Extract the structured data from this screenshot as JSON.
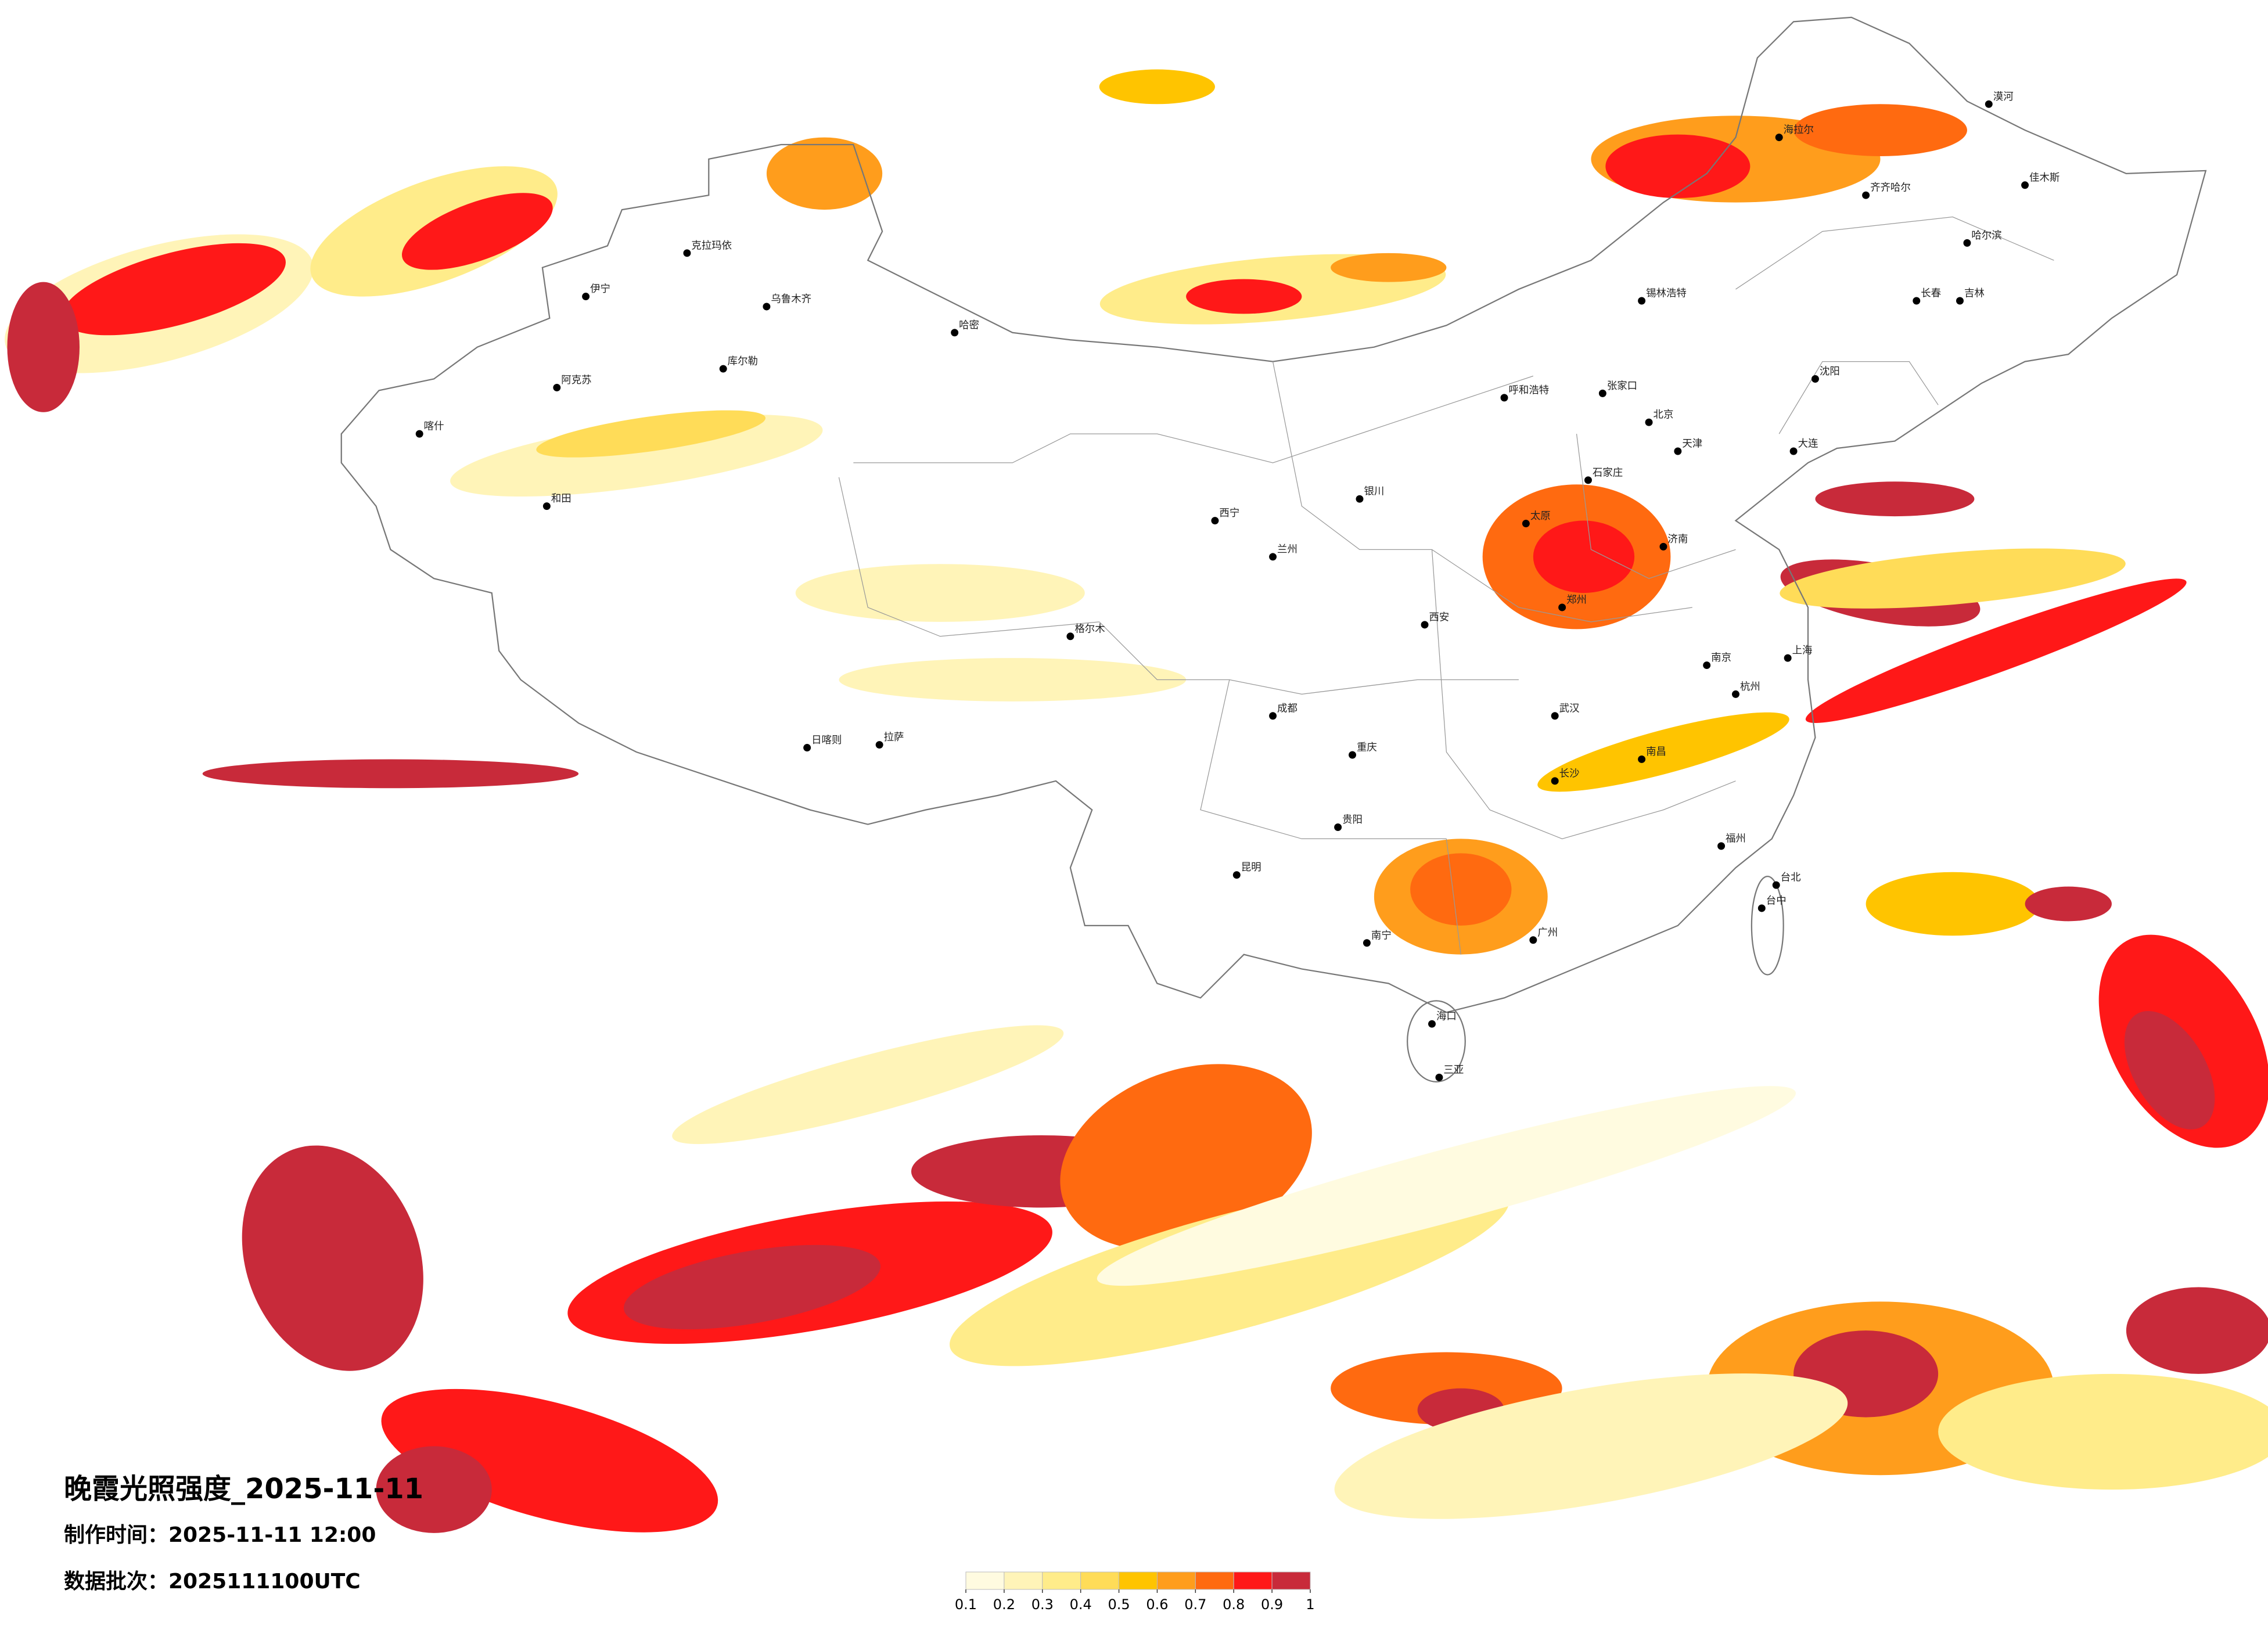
{
  "title": "晚霞光照强度_2025-11-11",
  "production_time": "制作时间：2025-11-11 12:00",
  "data_batch": "数据批次：2025111100UTC",
  "colorbar": {
    "ticks": [
      0.1,
      0.2,
      0.3,
      0.4,
      0.5,
      0.6,
      0.7,
      0.8,
      0.9,
      1
    ],
    "colors": [
      "#fffbe0",
      "#fff4b8",
      "#ffec8a",
      "#ffdc58",
      "#ffc400",
      "#ff9d1c",
      "#ff6a10",
      "#ff1818",
      "#c82a3a"
    ]
  },
  "cities": [
    "伊宁",
    "克拉玛依",
    "乌鲁木齐",
    "哈密",
    "库尔勒",
    "阿克苏",
    "和田",
    "喀什",
    "拉萨",
    "日喀则",
    "格尔木",
    "西宁",
    "兰州",
    "银川",
    "呼和浩特",
    "张家口",
    "锡林浩特",
    "北京",
    "天津",
    "石家庄",
    "太原",
    "济南",
    "郑州",
    "西安",
    "成都",
    "重庆",
    "贵阳",
    "昆明",
    "南宁",
    "广州",
    "海口",
    "三亚",
    "武汉",
    "长沙",
    "南昌",
    "福州",
    "杭州",
    "上海",
    "南京",
    "台北",
    "台中",
    "沈阳",
    "大连",
    "长春",
    "吉林",
    "哈尔滨",
    "齐齐哈尔",
    "佳木斯",
    "海拉尔",
    "漠河"
  ]
}
